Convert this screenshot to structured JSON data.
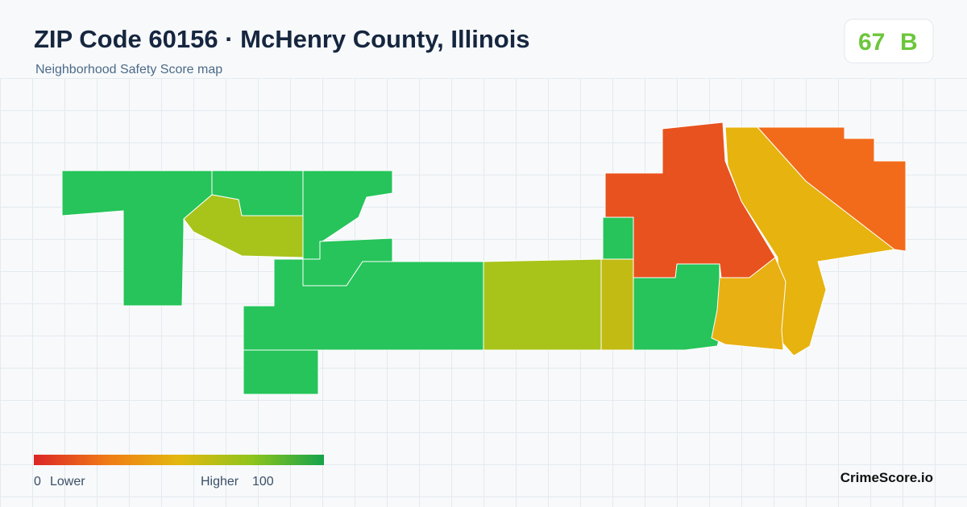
{
  "header": {
    "title": "ZIP Code 60156 · McHenry County, Illinois",
    "subtitle": "Neighborhood Safety Score map"
  },
  "score": {
    "value": 67,
    "grade": "B"
  },
  "legend": {
    "min": 0,
    "min_label": "Lower",
    "max_label": "Higher",
    "max": 100
  },
  "brand": "CrimeScore.io"
}
